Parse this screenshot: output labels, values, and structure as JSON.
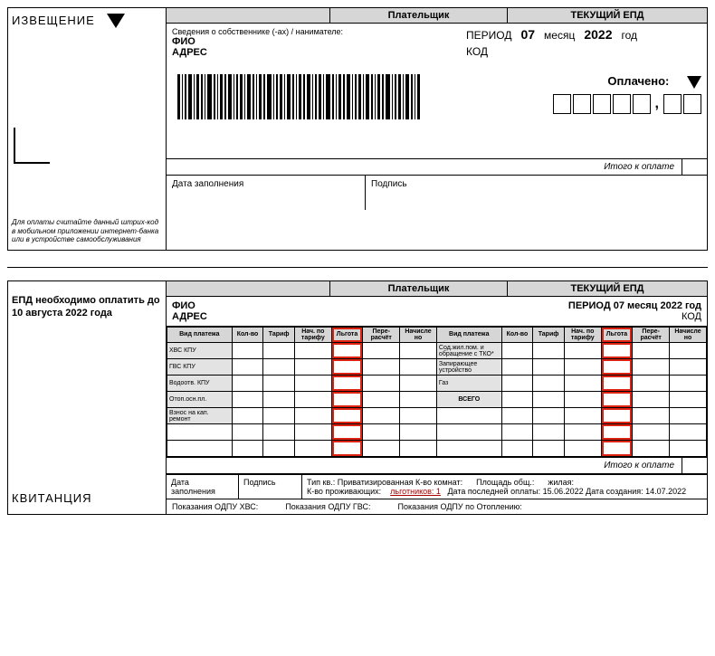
{
  "notice": {
    "title": "ИЗВЕЩЕНИЕ",
    "scan_note": "Для оплаты считайте данный штрих-код в мобильном приложении интернет-банка или в устройстве самообслуживания"
  },
  "header": {
    "payer": "Плательщик",
    "current": "ТЕКУЩИЙ ЕПД"
  },
  "owner": {
    "label": "Сведения о собственнике (-ах) / нанимателе:",
    "fio": "ФИО",
    "addr": "АДРЕС"
  },
  "period": {
    "label": "ПЕРИОД",
    "month_num": "07",
    "month_lbl": "месяц",
    "year": "2022",
    "year_lbl": "год",
    "code": "КОД",
    "paid": "Оплачено:"
  },
  "totals": {
    "label": "Итого к оплате"
  },
  "sign": {
    "date": "Дата заполнения",
    "sig": "Подпись"
  },
  "receipt": {
    "title": "КВИТАНЦИЯ",
    "due": "ЕПД необходимо оплатить до 10 августа 2022 года",
    "period_line": "ПЕРИОД 07 месяц 2022 год"
  },
  "cols": {
    "c1": "Вид платежа",
    "c2": "Кол-во",
    "c3": "Тариф",
    "c4": "Нач. по тарифу",
    "c5": "Льгота",
    "c6": "Пере-расчёт",
    "c7": "Начисле но"
  },
  "services_left": [
    "ХВС КПУ",
    "ГВС КПУ",
    "Водоотв. КПУ",
    "Отоп.осн.пл.",
    "Взнос на кап. ремонт"
  ],
  "services_right": [
    "Сод.жил.пом. и обращение с ТКО*",
    "Запирающее устройство",
    "Газ",
    "ВСЕГО"
  ],
  "footer": {
    "date": "Дата заполнения",
    "sig": "Подпись",
    "line1_a": "Тип кв.: Приватизированная К-во комнат:",
    "line1_b": "Площадь общ.:",
    "line1_c": "жилая:",
    "line2_a": "К-во проживающих:",
    "line2_b": "льготников: 1",
    "line2_c": "Дата последней оплаты: 15.06.2022 Дата создания: 14.07.2022"
  },
  "meters": {
    "m1": "Показания ОДПУ ХВС:",
    "m2": "Показания ОДПУ ГВС:",
    "m3": "Показания ОДПУ по Отоплению:"
  }
}
